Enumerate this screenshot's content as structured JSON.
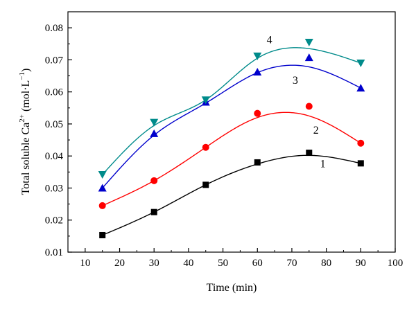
{
  "chart_data": {
    "type": "scatter",
    "title": "",
    "xlabel": "Time (min)",
    "ylabel_main": "Total soluble Ca",
    "ylabel_sup": "2+",
    "ylabel_unit_open": " (mol·L",
    "ylabel_unit_sup": "−1",
    "ylabel_unit_close": ")",
    "xlim": [
      5,
      100
    ],
    "ylim": [
      0.01,
      0.085
    ],
    "xticks": [
      10,
      20,
      30,
      40,
      50,
      60,
      70,
      80,
      90,
      100
    ],
    "xtick_labels": [
      "10",
      "20",
      "30",
      "40",
      "50",
      "60",
      "70",
      "80",
      "90",
      "100"
    ],
    "yticks": [
      0.01,
      0.02,
      0.03,
      0.04,
      0.05,
      0.06,
      0.07,
      0.08
    ],
    "ytick_labels": [
      "0.01",
      "0.02",
      "0.03",
      "0.04",
      "0.05",
      "0.06",
      "0.07",
      "0.08"
    ],
    "grid": false,
    "legend": "none",
    "series": [
      {
        "label": "1",
        "marker": "square",
        "color": "#000000",
        "x": [
          15,
          30,
          45,
          60,
          75,
          90
        ],
        "y": [
          0.0153,
          0.0225,
          0.031,
          0.038,
          0.041,
          0.0377
        ],
        "fit_y": [
          0.0153,
          0.0225,
          0.031,
          0.0375,
          0.0402,
          0.0377
        ],
        "label_pos": [
          79,
          0.0365
        ]
      },
      {
        "label": "2",
        "marker": "circle",
        "color": "#ff0000",
        "x": [
          15,
          30,
          45,
          60,
          75,
          90
        ],
        "y": [
          0.0245,
          0.0323,
          0.0427,
          0.0533,
          0.0555,
          0.044
        ],
        "fit_y": [
          0.0245,
          0.0323,
          0.0427,
          0.052,
          0.0525,
          0.044
        ],
        "label_pos": [
          77,
          0.047
        ]
      },
      {
        "label": "3",
        "marker": "triangle-up",
        "color": "#0000cc",
        "x": [
          15,
          30,
          45,
          60,
          75,
          90
        ],
        "y": [
          0.03,
          0.047,
          0.0568,
          0.0662,
          0.0707,
          0.0612
        ],
        "fit_y": [
          0.03,
          0.0465,
          0.0565,
          0.066,
          0.0678,
          0.0612
        ],
        "label_pos": [
          71,
          0.0625
        ]
      },
      {
        "label": "4",
        "marker": "triangle-down",
        "color": "#008b8b",
        "x": [
          15,
          30,
          45,
          60,
          75,
          90
        ],
        "y": [
          0.0342,
          0.0505,
          0.0575,
          0.0712,
          0.0755,
          0.069
        ],
        "fit_y": [
          0.0342,
          0.0495,
          0.0575,
          0.0705,
          0.0735,
          0.069
        ],
        "label_pos": [
          63.5,
          0.0752
        ]
      }
    ]
  }
}
